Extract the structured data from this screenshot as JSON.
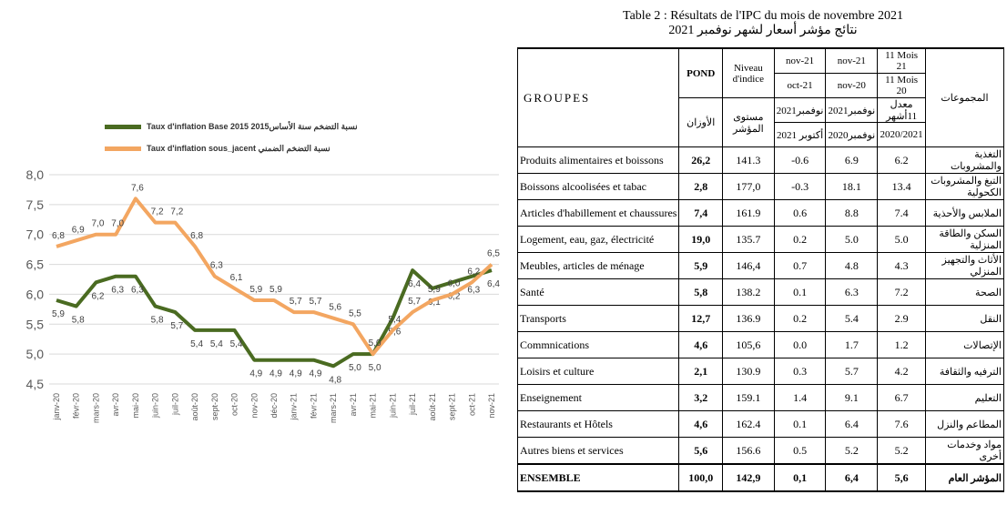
{
  "chart_data": {
    "type": "line",
    "categories": [
      "janv-20",
      "févr-20",
      "mars-20",
      "avr-20",
      "mai-20",
      "juin-20",
      "juil-20",
      "août-20",
      "sept-20",
      "oct-20",
      "nov-20",
      "déc-20",
      "janv-21",
      "févr-21",
      "mars-21",
      "avr-21",
      "mai-21",
      "juin-21",
      "juil-21",
      "août-21",
      "sept-21",
      "oct-21",
      "nov-21"
    ],
    "series": [
      {
        "name": "Taux d'inflation Base 2015 نسبة التضخم سنة الأساس2015",
        "color": "#4a6b21",
        "values": [
          5.9,
          5.8,
          6.2,
          6.3,
          6.3,
          5.8,
          5.7,
          5.4,
          5.4,
          5.4,
          4.9,
          4.9,
          4.9,
          4.9,
          4.8,
          5.0,
          5.0,
          5.6,
          6.4,
          6.1,
          6.2,
          6.3,
          6.4
        ],
        "labels": [
          "5,9",
          "5,8",
          "6,2",
          "6,3",
          "6,3",
          "5,8",
          "5,7",
          "5,4",
          "5,4",
          "5,4",
          "4,9",
          "4,9",
          "4,9",
          "4,9",
          "4,8",
          "5,0",
          "5,0",
          "5,6",
          "6,4",
          "6,1",
          "6,2",
          "6,3",
          "6,4"
        ]
      },
      {
        "name": "Taux d'inflation sous_jacent نسبة التضخم الضمني",
        "color": "#f3a661",
        "values": [
          6.8,
          6.9,
          7.0,
          7.0,
          7.6,
          7.2,
          7.2,
          6.8,
          6.3,
          6.1,
          5.9,
          5.9,
          5.7,
          5.7,
          5.6,
          5.5,
          5.0,
          5.4,
          5.7,
          5.9,
          6.0,
          6.2,
          6.5
        ],
        "labels": [
          "6,8",
          "6,9",
          "7,0",
          "7,0",
          "7,6",
          "7,2",
          "7,2",
          "6,8",
          "6,3",
          "6,1",
          "5,9",
          "5,9",
          "5,7",
          "5,7",
          "5,6",
          "5,5",
          "5,0",
          "5,4",
          "5,7",
          "5,9",
          "6,0",
          "6,2",
          "6,5"
        ]
      }
    ],
    "ylim": [
      4.5,
      8.0
    ],
    "yticks": [
      "4,5",
      "5,0",
      "5,5",
      "6,0",
      "6,5",
      "7,0",
      "7,5",
      "8,0"
    ],
    "grid": true,
    "legend": "top"
  },
  "table": {
    "caption_fr": "Table 2 : Résultats de l'IPC du mois de novembre 2021",
    "caption_ar": "نتائج مؤشر أسعار لشهر نوفمبر 2021",
    "headers": {
      "groupes": "GROUPES",
      "pond": "POND",
      "pond_ar": "الأوزان",
      "niveau": "Niveau d'indice",
      "niveau_ar": "مستوى المؤشر",
      "c1_top": "nov-21",
      "c1_bottom": "oct-21",
      "c1_ar_top": "نوفمبر2021",
      "c1_ar_bottom": "أكتوبر 2021",
      "c2_top": "nov-21",
      "c2_bottom": "nov-20",
      "c2_ar_top": "نوفمبر2021",
      "c2_ar_bottom": "نوفمبر2020",
      "c3_top": "11 Mois 21",
      "c3_bottom": "11 Mois 20",
      "c3_ar_top": "معدل 11أشهر",
      "c3_ar_bottom": "2020/2021",
      "groupes_ar": "المجموعات"
    },
    "rows": [
      {
        "label": "Produits alimentaires et boissons",
        "pond": "26,2",
        "niveau": "141.3",
        "m": "-0.6",
        "y": "6.9",
        "a": "6.2",
        "ar": "التغذية والمشروبات"
      },
      {
        "label": "Boissons alcoolisées et tabac",
        "pond": "2,8",
        "niveau": "177,0",
        "m": "-0.3",
        "y": "18.1",
        "a": "13.4",
        "ar": "التبغ والمشروبات الكحولية"
      },
      {
        "label": "Articles d'habillement et chaussures",
        "pond": "7,4",
        "niveau": "161.9",
        "m": "0.6",
        "y": "8.8",
        "a": "7.4",
        "ar": "الملابس والأحذية"
      },
      {
        "label": "Logement, eau, gaz, électricité",
        "pond": "19,0",
        "niveau": "135.7",
        "m": "0.2",
        "y": "5.0",
        "a": "5.0",
        "ar": "السكن والطاقة المنزلية"
      },
      {
        "label": "Meubles, articles de ménage",
        "pond": "5,9",
        "niveau": "146,4",
        "m": "0.7",
        "y": "4.8",
        "a": "4.3",
        "ar": "الأثاث والتجهيز المنزلي"
      },
      {
        "label": "Santé",
        "pond": "5,8",
        "niveau": "138.2",
        "m": "0.1",
        "y": "6.3",
        "a": "7.2",
        "ar": "الصحة"
      },
      {
        "label": "Transports",
        "pond": "12,7",
        "niveau": "136.9",
        "m": "0.2",
        "y": "5.4",
        "a": "2.9",
        "ar": "النقل"
      },
      {
        "label": "Commnications",
        "pond": "4,6",
        "niveau": "105,6",
        "m": "0.0",
        "y": "1.7",
        "a": "1.2",
        "ar": "الإتصالات"
      },
      {
        "label": "Loisirs et culture",
        "pond": "2,1",
        "niveau": "130.9",
        "m": "0.3",
        "y": "5.7",
        "a": "4.2",
        "ar": "الترفيه والثقافة"
      },
      {
        "label": "Enseignement",
        "pond": "3,2",
        "niveau": "159.1",
        "m": "1.4",
        "y": "9.1",
        "a": "6.7",
        "ar": "التعليم"
      },
      {
        "label": "Restaurants et Hôtels",
        "pond": "4,6",
        "niveau": "162.4",
        "m": "0.1",
        "y": "6.4",
        "a": "7.6",
        "ar": "المطاعم والنزل"
      },
      {
        "label": "Autres biens et services",
        "pond": "5,6",
        "niveau": "156.6",
        "m": "0.5",
        "y": "5.2",
        "a": "5.2",
        "ar": "مواد وخدمات أخرى"
      }
    ],
    "total": {
      "label": "ENSEMBLE",
      "pond": "100,0",
      "niveau": "142,9",
      "m": "0,1",
      "y": "6,4",
      "a": "5,6",
      "ar": "المؤشر العام"
    }
  }
}
